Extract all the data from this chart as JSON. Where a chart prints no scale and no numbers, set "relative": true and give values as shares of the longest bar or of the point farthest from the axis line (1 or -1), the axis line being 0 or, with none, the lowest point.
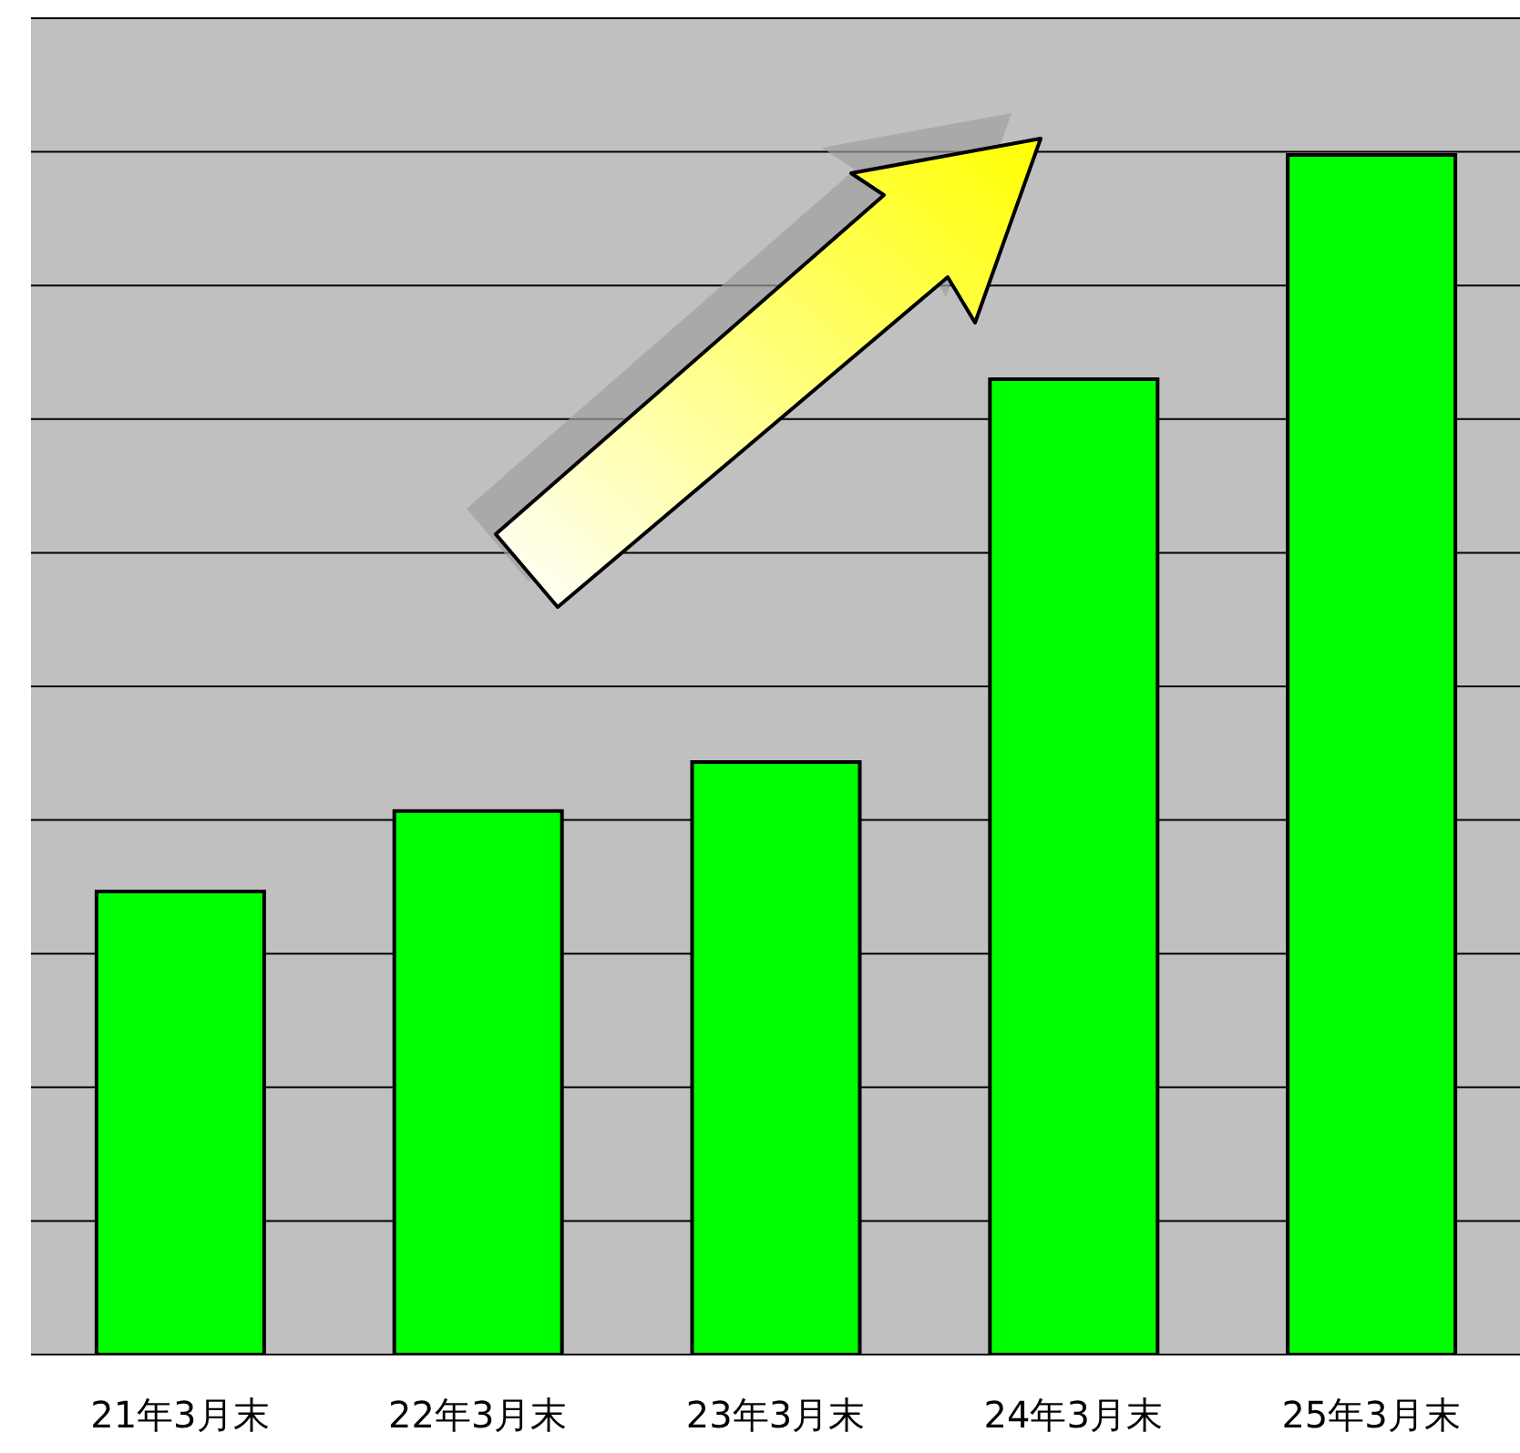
{
  "chart_data": {
    "type": "bar",
    "relative": true,
    "categories": [
      "21年3月末",
      "22年3月末",
      "23年3月末",
      "24年3月末",
      "25年3月末"
    ],
    "values": [
      0.386,
      0.453,
      0.494,
      0.813,
      1
    ],
    "color": "#00ff00",
    "grid": "y"
  }
}
